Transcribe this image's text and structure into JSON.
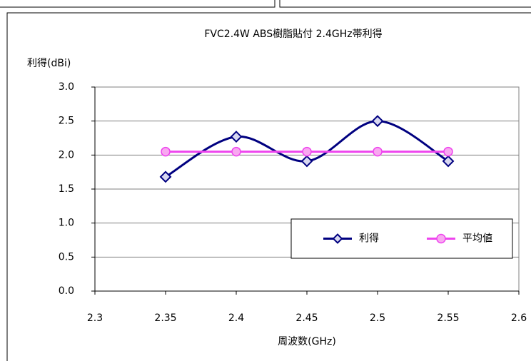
{
  "chart_data": {
    "type": "line",
    "title": "FVC2.4W ABS樹脂貼付 2.4GHz帯利得",
    "ylabel": "利得(dBi)",
    "xlabel": "周波数(GHz)",
    "x": [
      2.35,
      2.4,
      2.45,
      2.5,
      2.55
    ],
    "series": [
      {
        "name": "利得",
        "color": "#000080",
        "marker": "diamond",
        "values": [
          1.68,
          2.27,
          1.91,
          2.5,
          1.91
        ]
      },
      {
        "name": "平均値",
        "color": "#ee44ee",
        "marker": "circle",
        "values": [
          2.05,
          2.05,
          2.05,
          2.05,
          2.05
        ]
      }
    ],
    "xlim": [
      2.3,
      2.6
    ],
    "xticks": [
      2.3,
      2.35,
      2.4,
      2.45,
      2.5,
      2.55,
      2.6
    ],
    "ylim": [
      0,
      3
    ],
    "yticks": [
      {
        "value": 0,
        "label": "0.0"
      },
      0.5,
      {
        "value": 1,
        "label": "1.0"
      },
      1.5,
      {
        "value": 2,
        "label": "2.0"
      },
      2.5,
      {
        "value": 3,
        "label": "3.0"
      }
    ],
    "grid": true,
    "smooth": true,
    "legend": "lower right"
  }
}
